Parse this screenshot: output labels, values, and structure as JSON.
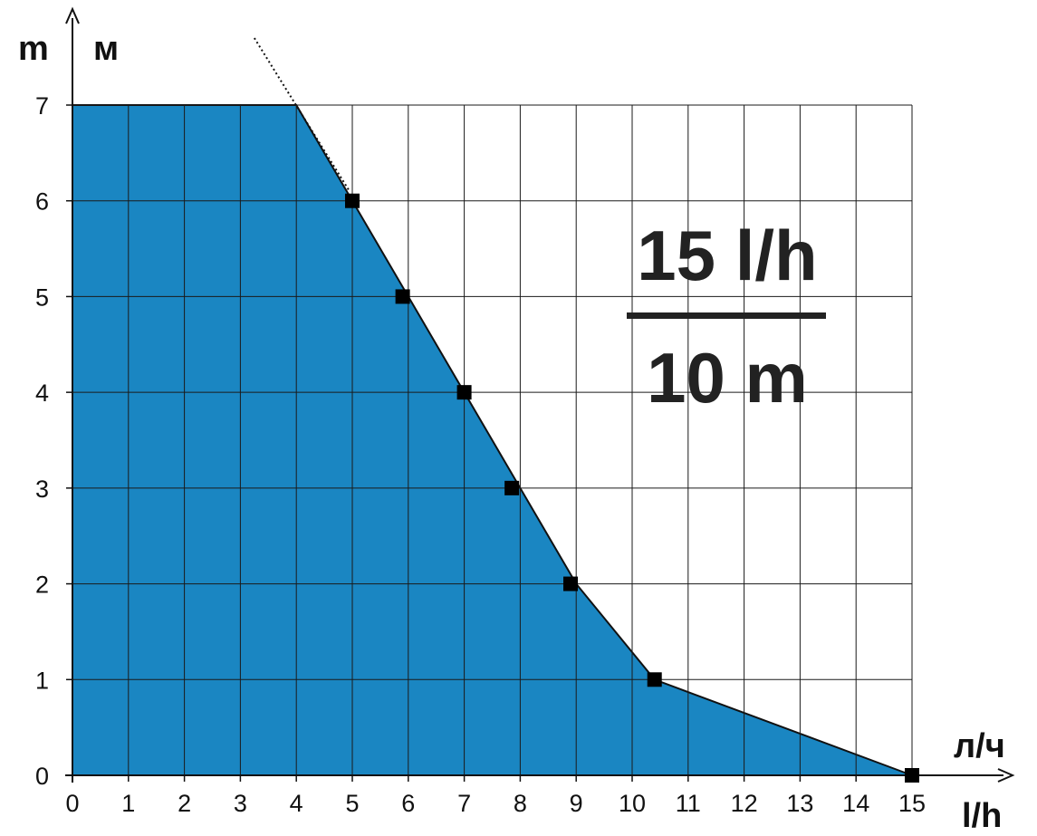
{
  "chart_data": {
    "type": "area",
    "x_unit_labels": [
      "л/ч",
      "l/h"
    ],
    "y_unit_labels": [
      "m",
      "м"
    ],
    "xlim": [
      0,
      15
    ],
    "ylim": [
      0,
      7
    ],
    "x_ticks": [
      0,
      1,
      2,
      3,
      4,
      5,
      6,
      7,
      8,
      9,
      10,
      11,
      12,
      13,
      14,
      15
    ],
    "y_ticks": [
      0,
      1,
      2,
      3,
      4,
      5,
      6,
      7
    ],
    "grid": true,
    "fill_color": "#1a86c2",
    "curve": {
      "x": [
        0,
        4,
        5,
        6,
        7,
        8,
        9,
        10.4,
        15
      ],
      "y": [
        7,
        7,
        6,
        5,
        4,
        3,
        2,
        1,
        0
      ]
    },
    "markers": {
      "x": [
        5,
        5.9,
        7,
        7.85,
        8.9,
        10.4,
        15
      ],
      "y": [
        6,
        5,
        4,
        3,
        2,
        1,
        0
      ]
    },
    "dotted_extension": {
      "x": [
        3.25,
        4.95
      ],
      "y": [
        7.7,
        6.1
      ]
    },
    "annotation": {
      "top": "15 l/h",
      "bottom": "10 m"
    }
  }
}
